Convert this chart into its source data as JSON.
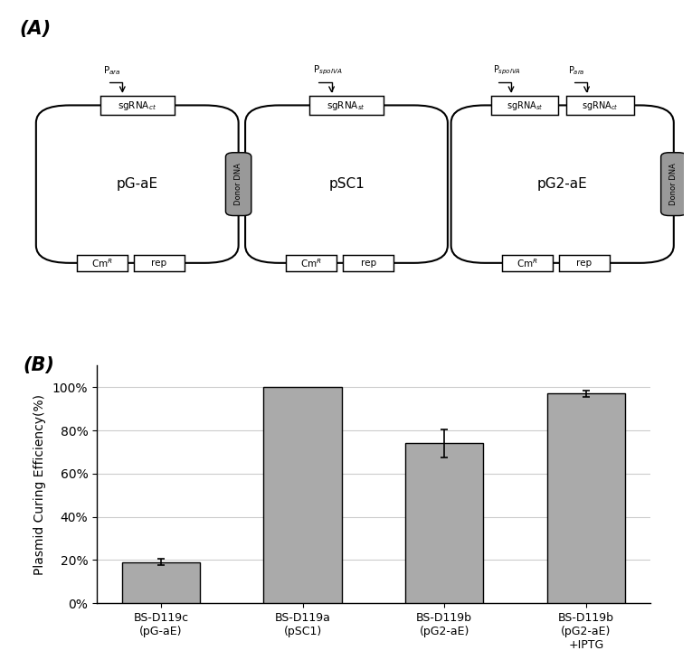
{
  "panel_A_label": "(A)",
  "panel_B_label": "(B)",
  "bar_categories": [
    "BS-D119c\n(pG-aE)",
    "BS-D119a\n(pSC1)",
    "BS-D119b\n(pG2-aE)",
    "BS-D119b\n(pG2-aE)\n+IPTG"
  ],
  "bar_values": [
    19.0,
    100.0,
    74.0,
    97.0
  ],
  "bar_errors": [
    1.5,
    0.0,
    6.5,
    1.5
  ],
  "bar_color": "#aaaaaa",
  "bar_edge_color": "#000000",
  "ylabel": "Plasmid Curing Efficiency(%)",
  "ylim": [
    0,
    110
  ],
  "yticks": [
    0,
    20,
    40,
    60,
    80,
    100
  ],
  "yticklabels": [
    "0%",
    "20%",
    "40%",
    "60%",
    "80%",
    "100%"
  ],
  "grid_color": "#cccccc",
  "background_color": "#ffffff",
  "box_color": "#999999",
  "font_color": "#000000",
  "plasmid_lw": 1.5,
  "plasmid_rr": 0.035
}
